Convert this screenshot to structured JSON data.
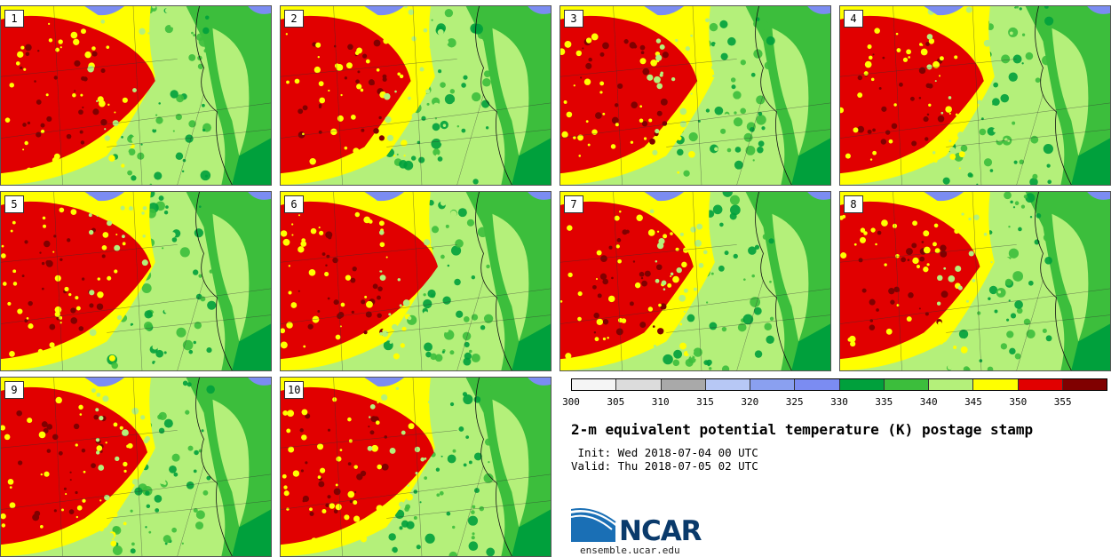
{
  "stamps": [
    {
      "label": "1"
    },
    {
      "label": "2"
    },
    {
      "label": "3"
    },
    {
      "label": "4"
    },
    {
      "label": "5"
    },
    {
      "label": "6"
    },
    {
      "label": "7"
    },
    {
      "label": "8"
    },
    {
      "label": "9"
    },
    {
      "label": "10"
    }
  ],
  "colorbar": {
    "ticks": [
      "300",
      "305",
      "310",
      "315",
      "320",
      "325",
      "330",
      "335",
      "340",
      "345",
      "350",
      "355"
    ],
    "colors": [
      "#f5f5f5",
      "#dcdcdc",
      "#a9a9a9",
      "#b7c8f5",
      "#8aa0f0",
      "#7b8cf2",
      "#00a03c",
      "#3cbe3c",
      "#b4f07a",
      "#ffff00",
      "#e10000",
      "#800000"
    ]
  },
  "title": "2-m equivalent potential temperature (K) postage stamp",
  "init": " Init: Wed 2018-07-04 00 UTC",
  "valid": "Valid: Thu 2018-07-05 02 UTC",
  "logo": {
    "name": "NCAR",
    "url": "ensemble.ucar.edu"
  },
  "palette": {
    "red": "#e10000",
    "darkred": "#800000",
    "yellow": "#ffff00",
    "lightgreen": "#b4f07a",
    "green": "#3cbe3c",
    "darkgreen": "#00a03c",
    "lake": "#7b8cf2"
  }
}
